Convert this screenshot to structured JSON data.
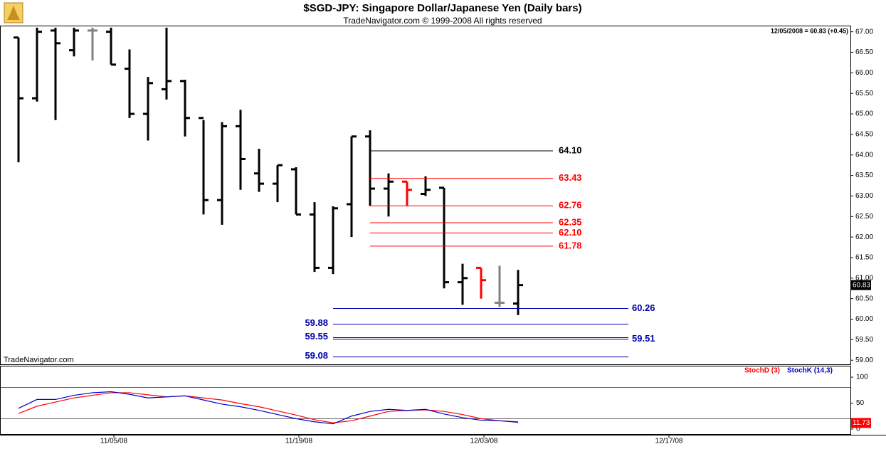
{
  "chart_data": [
    {
      "type": "ohlc",
      "title": "$SGD-JPY:  Singapore Dollar/Japanese Yen  (Daily bars)",
      "subtitle": "TradeNavigator.com © 1999-2008 All rights reserved",
      "watermark": "TradeNavigator.com",
      "last_label": "12/05/2008 = 60.83 (+0.45)",
      "last_value": 60.83,
      "last_value_label": "60.83",
      "open": [
        66.86,
        65.38,
        67.03,
        66.55,
        67.03,
        67.0,
        66.1,
        65.0,
        65.6,
        65.8,
        64.9,
        62.9,
        64.7,
        63.55,
        63.3,
        63.65,
        62.55,
        61.25,
        62.8,
        64.45,
        63.18,
        63.35,
        63.05,
        63.2,
        60.9,
        61.25,
        60.4,
        60.38
      ],
      "high": [
        66.86,
        67.1,
        67.1,
        67.1,
        67.1,
        67.1,
        66.57,
        65.9,
        67.1,
        65.83,
        64.85,
        64.8,
        65.1,
        64.15,
        63.75,
        63.7,
        62.85,
        62.75,
        64.45,
        64.6,
        63.55,
        63.35,
        63.48,
        63.2,
        61.35,
        61.25,
        61.3,
        61.2
      ],
      "low": [
        63.82,
        65.3,
        64.85,
        66.4,
        66.3,
        66.2,
        64.9,
        64.35,
        65.35,
        64.45,
        62.55,
        62.3,
        63.15,
        63.1,
        62.85,
        62.55,
        61.15,
        61.1,
        62.0,
        62.76,
        62.5,
        62.76,
        63.0,
        60.75,
        60.35,
        60.5,
        60.3,
        60.1
      ],
      "close": [
        65.38,
        67.0,
        66.72,
        67.03,
        67.03,
        66.2,
        65.0,
        65.75,
        65.8,
        64.9,
        62.9,
        64.7,
        63.9,
        63.3,
        63.75,
        62.55,
        61.25,
        62.7,
        64.45,
        63.18,
        63.35,
        63.15,
        63.15,
        60.9,
        61.0,
        60.95,
        60.4,
        60.83
      ],
      "colors": [
        "#000000",
        "#000000",
        "#000000",
        "#000000",
        "#808080",
        "#000000",
        "#000000",
        "#000000",
        "#000000",
        "#000000",
        "#000000",
        "#000000",
        "#000000",
        "#000000",
        "#000000",
        "#000000",
        "#000000",
        "#000000",
        "#000000",
        "#000000",
        "#000000",
        "#ff0000",
        "#000000",
        "#000000",
        "#000000",
        "#ff0000",
        "#808080",
        "#000000"
      ],
      "fib_levels": {
        "values": [
          64.1,
          63.43,
          62.76,
          62.35,
          62.1,
          61.78
        ],
        "value_labels": [
          "64.10",
          "63.43",
          "62.76",
          "62.35",
          "62.10",
          "61.78"
        ],
        "colors": [
          "#000000",
          "#ff0000",
          "#ff0000",
          "#ff0000",
          "#ff0000",
          "#ff0000"
        ]
      },
      "support_levels": {
        "values": [
          60.26,
          59.88,
          59.55,
          59.51,
          59.08
        ],
        "value_labels": [
          "60.26",
          "59.88",
          "59.55",
          "59.51",
          "59.08"
        ],
        "color": "#0000aa"
      },
      "ylim": [
        58.9,
        67.15
      ],
      "yticks": [
        {
          "value": 59,
          "label": "59.00"
        },
        {
          "value": 59.5,
          "label": "59.50"
        },
        {
          "value": 60,
          "label": "60.00"
        },
        {
          "value": 60.5,
          "label": "60.50"
        },
        {
          "value": 61,
          "label": "61.00"
        },
        {
          "value": 61.5,
          "label": "61.50"
        },
        {
          "value": 62,
          "label": "62.00"
        },
        {
          "value": 62.5,
          "label": "62.50"
        },
        {
          "value": 63,
          "label": "63.00"
        },
        {
          "value": 63.5,
          "label": "63.50"
        },
        {
          "value": 64,
          "label": "64.00"
        },
        {
          "value": 64.5,
          "label": "64.50"
        },
        {
          "value": 65,
          "label": "65.00"
        },
        {
          "value": 65.5,
          "label": "65.50"
        },
        {
          "value": 66,
          "label": "66.00"
        },
        {
          "value": 66.5,
          "label": "66.50"
        },
        {
          "value": 67,
          "label": "67.00"
        }
      ],
      "xticks": [
        {
          "value": 5,
          "label": "11/05/08"
        },
        {
          "value": 15,
          "label": "11/19/08"
        },
        {
          "value": 25,
          "label": "12/03/08"
        },
        {
          "value": 35,
          "label": "12/17/08"
        }
      ]
    },
    {
      "type": "line",
      "series": [
        {
          "name": "StochD (3)",
          "color": "#ff0000",
          "values": [
            30,
            44,
            52,
            60,
            65,
            70,
            70,
            66,
            62,
            64,
            60,
            56,
            49,
            43,
            35,
            27,
            18,
            12,
            16,
            25,
            34,
            36,
            37,
            34,
            28,
            20,
            16,
            14
          ]
        },
        {
          "name": "StochK (14,3)",
          "color": "#0000cc",
          "values": [
            40,
            57,
            57,
            65,
            70,
            72,
            67,
            60,
            62,
            64,
            56,
            48,
            43,
            36,
            28,
            20,
            14,
            10,
            25,
            34,
            38,
            36,
            38,
            29,
            22,
            17,
            16,
            13
          ]
        }
      ],
      "last_value": 11.73,
      "levels": [
        80,
        20
      ],
      "ylim": [
        -11,
        122
      ],
      "yticks": [
        0,
        50,
        100
      ]
    }
  ]
}
